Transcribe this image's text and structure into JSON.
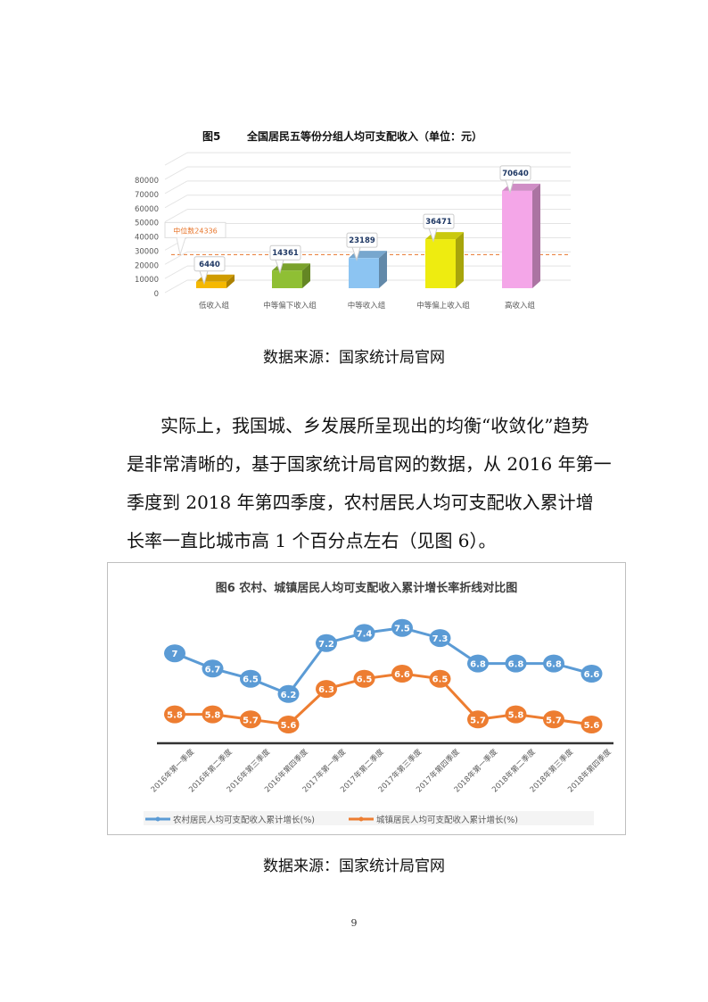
{
  "figure5": {
    "chart_data": {
      "type": "bar",
      "title_num": "图5",
      "title": "全国居民五等份分组人均可支配收入（单位：元）",
      "categories": [
        "低收入组",
        "中等偏下收入组",
        "中等收入组",
        "中等偏上收入组",
        "高收入组"
      ],
      "values": [
        6440,
        14361,
        23189,
        36471,
        70640
      ],
      "labels": [
        "6440",
        "14361",
        "23189",
        "36471",
        "70640"
      ],
      "colors": [
        "#f5b800",
        "#8fbf34",
        "#8cc4f2",
        "#eeec10",
        "#f4a6e8"
      ],
      "yticks": [
        "0",
        "10000",
        "20000",
        "30000",
        "40000",
        "50000",
        "60000",
        "70000",
        "80000"
      ],
      "ylim": [
        0,
        90000
      ],
      "median": {
        "label": "中位数24336",
        "value": 24336,
        "color": "#e8762c"
      }
    },
    "source": "数据来源：国家统计局官网"
  },
  "paragraph": {
    "lines": [
      "实际上，我国城、乡发展所呈现出的均衡“收敛化”趋势",
      "是非常清晰的，基于国家统计局官网的数据，从 2016 年第一",
      "季度到  2018  年第四季度，农村居民人均可支配收入累计增",
      "长率一直比城市高 1 个百分点左右（见图 6）。"
    ]
  },
  "figure6": {
    "chart_data": {
      "type": "line",
      "title": "图6  农村、城镇居民人均可支配收入累计增长率折线对比图",
      "categories": [
        "2016年第一季度",
        "2016年第二季度",
        "2016年第三季度",
        "2016年第四季度",
        "2017年第一季度",
        "2017年第二季度",
        "2017年第三季度",
        "2017年第四季度",
        "2018年第一季度",
        "2018年第二季度",
        "2018年第三季度",
        "2018年第四季度"
      ],
      "series": [
        {
          "name": "农村居民人均可支配收入累计增长(%)",
          "color": "#5b9bd5",
          "values": [
            7,
            6.7,
            6.5,
            6.2,
            7.2,
            7.4,
            7.5,
            7.3,
            6.8,
            6.8,
            6.8,
            6.6
          ]
        },
        {
          "name": "城镇居民人均可支配收入累计增长(%)",
          "color": "#ed7d31",
          "values": [
            5.8,
            5.8,
            5.7,
            5.6,
            6.3,
            6.5,
            6.6,
            6.5,
            5.7,
            5.8,
            5.7,
            5.6
          ]
        }
      ],
      "legend": "bottom"
    },
    "source": "数据来源：国家统计局官网"
  },
  "page_number": "9"
}
